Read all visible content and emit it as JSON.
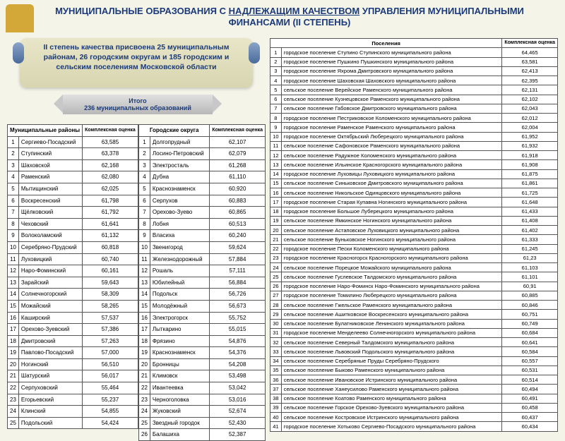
{
  "title_line1": "МУНИЦИПАЛЬНЫЕ ОБРАЗОВАНИЯ С ",
  "title_underline": "НАДЛЕЖАЩИМ КАЧЕСТВОМ",
  "title_line2": " УПРАВЛЕНИЯ МУНИЦИПАЛЬНЫМИ ФИНАНСАМИ (II СТЕПЕНЬ)",
  "banner": "II степень качества присвоена 25 муниципальным районам, 26 городским округам и 185 городским и сельским поселениям Московской области",
  "itogo_label": "Итого",
  "itogo_value": "236 муниципальных образований",
  "col_komplex": "Комплексная оценка",
  "mr_header": "Муниципальные районы",
  "go_header": "Городские округа",
  "ps_header": "Поселения",
  "mr": [
    [
      "Сергиево-Посадский",
      "63,585"
    ],
    [
      "Ступинский",
      "63,378"
    ],
    [
      "Шаховской",
      "62,168"
    ],
    [
      "Раменский",
      "62,080"
    ],
    [
      "Мытищинский",
      "62,025"
    ],
    [
      "Воскресенский",
      "61,798"
    ],
    [
      "Щёлковский",
      "61,792"
    ],
    [
      "Чеховский",
      "61,641"
    ],
    [
      "Волоколамский",
      "61,132"
    ],
    [
      "Серебряно-Прудский",
      "60,818"
    ],
    [
      "Луховицкий",
      "60,740"
    ],
    [
      "Наро-Фоминский",
      "60,161"
    ],
    [
      "Зарайский",
      "59,643"
    ],
    [
      "Солнечногорский",
      "58,309"
    ],
    [
      "Можайский",
      "58,265"
    ],
    [
      "Каширский",
      "57,537"
    ],
    [
      "Орехово-Зуевский",
      "57,386"
    ],
    [
      "Дмитровский",
      "57,263"
    ],
    [
      "Павлово-Посадский",
      "57,000"
    ],
    [
      "Ногинский",
      "56,510"
    ],
    [
      "Шатурский",
      "56,017"
    ],
    [
      "Серпуховский",
      "55,464"
    ],
    [
      "Егорьевский",
      "55,237"
    ],
    [
      "Клинский",
      "54,855"
    ],
    [
      "Подольский",
      "54,424"
    ]
  ],
  "go": [
    [
      "Долгопрудный",
      "62,107"
    ],
    [
      "Лосино-Петровский",
      "62,079"
    ],
    [
      "Электросталь",
      "61,268"
    ],
    [
      "Дубна",
      "61,110"
    ],
    [
      "Краснознаменск",
      "60,920"
    ],
    [
      "Серпухов",
      "60,883"
    ],
    [
      "Орехово-Зуево",
      "60,865"
    ],
    [
      "Лобня",
      "60,513"
    ],
    [
      "Власиха",
      "60,240"
    ],
    [
      "Звенигород",
      "59,624"
    ],
    [
      "Железнодорожный",
      "57,884"
    ],
    [
      "Рошаль",
      "57,111"
    ],
    [
      "Юбилейный",
      "56,884"
    ],
    [
      "Подольск",
      "56,726"
    ],
    [
      "Молодёжный",
      "56,673"
    ],
    [
      "Электрогорск",
      "55,752"
    ],
    [
      "Лыткарино",
      "55,015"
    ],
    [
      "Фрязино",
      "54,876"
    ],
    [
      "Краснознаменск",
      "54,376"
    ],
    [
      "Бронницы",
      "54,208"
    ],
    [
      "Климовск",
      "53,498"
    ],
    [
      "Ивантеевка",
      "53,042"
    ],
    [
      "Черноголовка",
      "53,016"
    ],
    [
      "Жуковский",
      "52,674"
    ],
    [
      "Звездный городок",
      "52,430"
    ],
    [
      "Балашиха",
      "52,387"
    ]
  ],
  "ps": [
    [
      "городское поселение Ступино Ступинского муниципального района",
      "64,465"
    ],
    [
      "городское поселение Пушкино Пушкинского муниципального района",
      "63,581"
    ],
    [
      "городское поселение Яхрома Дмитровского муниципального района",
      "62,413"
    ],
    [
      "городское поселение Шаховская Шаховского муниципального района",
      "62,395"
    ],
    [
      "сельское поселение Верейское Раменского муниципального района",
      "62,131"
    ],
    [
      "сельское поселение Кузнецовское Раменского муниципального района",
      "62,102"
    ],
    [
      "сельское поселение Габовское Дмитровского муниципального района",
      "62,043"
    ],
    [
      "городское поселение Пестриковское Коломенского муниципального района",
      "62,012"
    ],
    [
      "городское поселение Раменское Раменского муниципального района",
      "62,004"
    ],
    [
      "городское поселение Октябрьский Люберецкого муниципального района",
      "61,952"
    ],
    [
      "сельское поселение Сафоновское Раменского муниципального района",
      "61,932"
    ],
    [
      "сельское поселение Радужное Коломенского муниципального района",
      "61,918"
    ],
    [
      "сельское поселение Ильинское Красногорского муниципального района",
      "61,908"
    ],
    [
      "городское поселение Луховицы Луховицкого муниципального района",
      "61,875"
    ],
    [
      "сельское поселение Синьковское Дмитровского муниципального района",
      "61,861"
    ],
    [
      "сельское поселение Никольское Одинцовского муниципального района",
      "61,725"
    ],
    [
      "городское поселение Старая Купавна Ногинского муниципального района",
      "61,648"
    ],
    [
      "городское поселение Большое Луберецкого муниципального района",
      "61,433"
    ],
    [
      "сельское поселение Ямкинское Ногинского муниципального района",
      "61,408"
    ],
    [
      "сельское поселение Астаповское Луховицкого муниципального района",
      "61,402"
    ],
    [
      "сельское поселение Буньковское Ногинского муниципального района",
      "61,333"
    ],
    [
      "городское поселение Пески Коломенского муниципального района",
      "61,245"
    ],
    [
      "городское поселение Красногорск Красногорского муниципального района",
      "61,23"
    ],
    [
      "сельское поселение Порецкое Можайского муниципального района",
      "61,103"
    ],
    [
      "сельское поселение Гуслевское Талдомского муниципального района",
      "61,101"
    ],
    [
      "городское поселение Наро-Фоминск Наро-Фоминского муниципального района",
      "60,91"
    ],
    [
      "городское поселение Томилино Люберецкого муниципального района",
      "60,885"
    ],
    [
      "сельское поселение Гжельское Раменского муниципального района",
      "60,846"
    ],
    [
      "сельское поселение Ашитковское Воскресенского муниципального района",
      "60,751"
    ],
    [
      "сельское поселение Булатниковское Ленинского муниципального района",
      "60,749"
    ],
    [
      "городское поселение Менделеево Солнечногорского муниципального района",
      "60,684"
    ],
    [
      "сельское поселение Северный Талдомского муниципального района",
      "60,641"
    ],
    [
      "сельское поселение Львовский Подольского муниципального района",
      "60,584"
    ],
    [
      "сельское поселение Серебряные Пруды Серебряно-Прудского",
      "60,557"
    ],
    [
      "сельское поселение Быково Раменского муниципального района",
      "60,531"
    ],
    [
      "сельское поселение Ивановское Истринского муниципального района",
      "60,514"
    ],
    [
      "сельское поселение Ханеусилово Раменского муниципального района",
      "60,494"
    ],
    [
      "сельское поселение Коатово Раменского муниципального района",
      "60,491"
    ],
    [
      "сельское поселение Горское Орехово-Зуевского муниципального района",
      "60,458"
    ],
    [
      "сельское поселение Костровское Истринского муниципального района",
      "60,437"
    ],
    [
      "городское поселение Хотьково Сергиево-Посадского муниципального района",
      "60,434"
    ]
  ]
}
